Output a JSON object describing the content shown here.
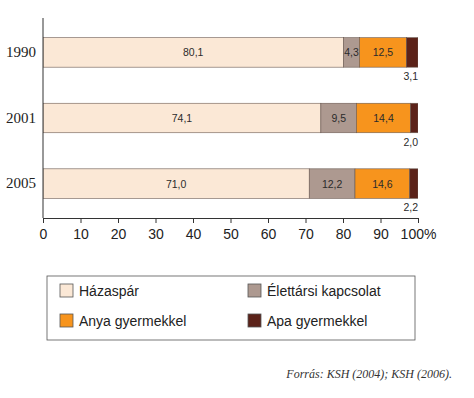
{
  "chart_data": {
    "type": "bar",
    "orientation": "horizontal",
    "stacked": true,
    "data_labels": true,
    "categories": [
      "1990",
      "2001",
      "2005"
    ],
    "series": [
      {
        "name": "Házaspár",
        "color": "#fbe8d6",
        "values": [
          80.1,
          74.1,
          71.0
        ],
        "value_labels": [
          "80,1",
          "74,1",
          "71,0"
        ]
      },
      {
        "name": "Élettársi kapcsolat",
        "color": "#ad9990",
        "values": [
          4.3,
          9.5,
          12.2
        ],
        "value_labels": [
          "4,3",
          "9,5",
          "12,2"
        ]
      },
      {
        "name": "Anya gyermekkel",
        "color": "#f7941d",
        "values": [
          12.5,
          14.4,
          14.6
        ],
        "value_labels": [
          "12,5",
          "14,4",
          "14,6"
        ]
      },
      {
        "name": "Apa gyermekkel",
        "color": "#5b2219",
        "values": [
          3.1,
          2.0,
          2.2
        ],
        "value_labels": [
          "3,1",
          "2,0",
          "2,2"
        ]
      }
    ],
    "xlim": [
      0,
      100
    ],
    "xticks": [
      0,
      10,
      20,
      30,
      40,
      50,
      60,
      70,
      80,
      90,
      {
        "value": 100,
        "label": "100%"
      }
    ],
    "annotations": [
      "Forrás: KSH (2004); KSH (2006)."
    ]
  }
}
